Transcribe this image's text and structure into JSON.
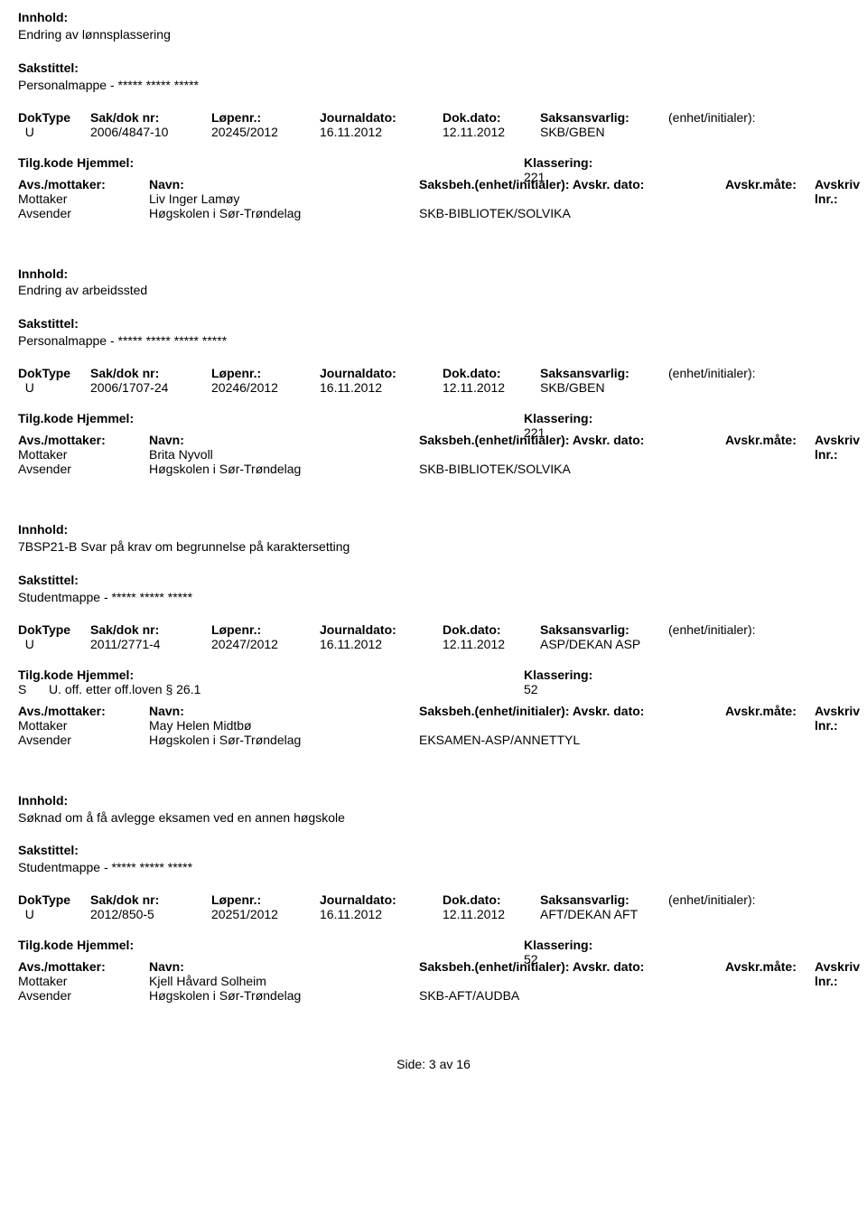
{
  "labels": {
    "innhold": "Innhold:",
    "sakstittel": "Sakstittel:",
    "doktype": "DokType",
    "sakdok": "Sak/dok nr:",
    "lopenr": "Løpenr.:",
    "journaldato": "Journaldato:",
    "dokdato": "Dok.dato:",
    "saksansvarlig": "Saksansvarlig:",
    "enhet": "(enhet/initialer):",
    "tilgkode": "Tilg.kode",
    "hjemmel": "Hjemmel:",
    "klassering": "Klassering:",
    "avsmottaker": "Avs./mottaker:",
    "navn": "Navn:",
    "saksbeh_full": "Saksbeh.(enhet/initialer): Avskr. dato:",
    "avskrmate": "Avskr.måte:",
    "avskrivlnr": "Avskriv lnr.:",
    "mottaker": "Mottaker",
    "avsender": "Avsender"
  },
  "records": [
    {
      "innhold": "Endring av lønnsplassering",
      "sakstittel": "Personalmappe - ***** ***** *****",
      "doktype": "U",
      "sakdok": "2006/4847-10",
      "lopenr": "20245/2012",
      "journaldato": "16.11.2012",
      "dokdato": "12.11.2012",
      "saksansvarlig": "SKB/GBEN",
      "hjemmel_code": "",
      "hjemmel_text": "",
      "klassering": "221",
      "mottaker_navn": "Liv Inger Lamøy",
      "avsender_navn": "Høgskolen i Sør-Trøndelag",
      "avsender_unit": "SKB-BIBLIOTEK/SOLVIKA"
    },
    {
      "innhold": "Endring av arbeidssted",
      "sakstittel": "Personalmappe - ***** ***** ***** *****",
      "doktype": "U",
      "sakdok": "2006/1707-24",
      "lopenr": "20246/2012",
      "journaldato": "16.11.2012",
      "dokdato": "12.11.2012",
      "saksansvarlig": "SKB/GBEN",
      "hjemmel_code": "",
      "hjemmel_text": "",
      "klassering": "221",
      "mottaker_navn": "Brita Nyvoll",
      "avsender_navn": "Høgskolen i Sør-Trøndelag",
      "avsender_unit": "SKB-BIBLIOTEK/SOLVIKA"
    },
    {
      "innhold": "7BSP21-B Svar på krav om begrunnelse på karaktersetting",
      "sakstittel": "Studentmappe - ***** ***** *****",
      "doktype": "U",
      "sakdok": "2011/2771-4",
      "lopenr": "20247/2012",
      "journaldato": "16.11.2012",
      "dokdato": "12.11.2012",
      "saksansvarlig": "ASP/DEKAN ASP",
      "hjemmel_code": "S",
      "hjemmel_text": "U. off. etter off.loven § 26.1",
      "klassering": "52",
      "mottaker_navn": "May Helen Midtbø",
      "avsender_navn": "Høgskolen i Sør-Trøndelag",
      "avsender_unit": "EKSAMEN-ASP/ANNETTYL"
    },
    {
      "innhold": "Søknad om å få avlegge eksamen ved en annen høgskole",
      "sakstittel": "Studentmappe - ***** ***** *****",
      "doktype": "U",
      "sakdok": "2012/850-5",
      "lopenr": "20251/2012",
      "journaldato": "16.11.2012",
      "dokdato": "12.11.2012",
      "saksansvarlig": "AFT/DEKAN AFT",
      "hjemmel_code": "",
      "hjemmel_text": "",
      "klassering": "52",
      "mottaker_navn": "Kjell Håvard Solheim",
      "avsender_navn": "Høgskolen i Sør-Trøndelag",
      "avsender_unit": "SKB-AFT/AUDBA"
    }
  ],
  "footer": "Side: 3 av 16"
}
